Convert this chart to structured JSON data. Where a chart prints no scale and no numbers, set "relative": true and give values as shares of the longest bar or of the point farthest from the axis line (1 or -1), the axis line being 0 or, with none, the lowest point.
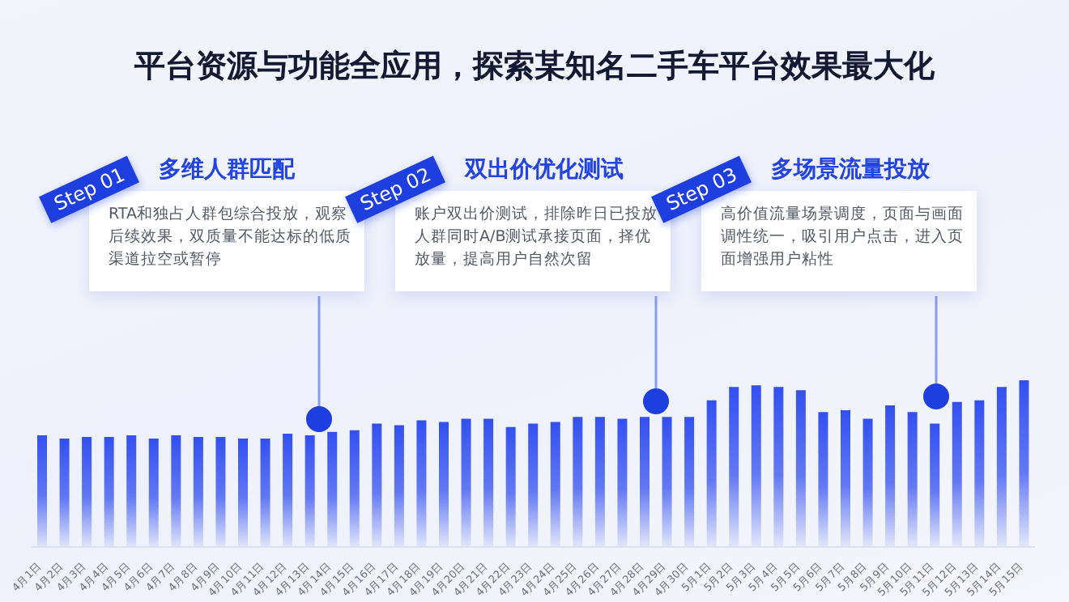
{
  "chart_data": {
    "type": "bar",
    "title": "平台资源与功能全应用，探索某知名二手车平台效果最大化",
    "relative": true,
    "color": "#3350f0",
    "categories": [
      "4月1日",
      "4月2日",
      "4月3日",
      "4月4日",
      "4月5日",
      "4月6日",
      "4月7日",
      "4月8日",
      "4月9日",
      "4月10日",
      "4月11日",
      "4月12日",
      "4月13日",
      "4月14日",
      "4月15日",
      "4月16日",
      "4月17日",
      "4月18日",
      "4月19日",
      "4月20日",
      "4月21日",
      "4月22日",
      "4月23日",
      "4月24日",
      "4月25日",
      "4月26日",
      "4月27日",
      "4月28日",
      "4月29日",
      "4月30日",
      "5月1日",
      "5月2日",
      "5月3日",
      "5月4日",
      "5月5日",
      "5月6日",
      "5月7日",
      "5月8日",
      "5月9日",
      "5月10日",
      "5月11日",
      "5月12日",
      "5月13日",
      "5月14日",
      "5月15日"
    ],
    "values": [
      0.67,
      0.65,
      0.66,
      0.66,
      0.67,
      0.65,
      0.67,
      0.66,
      0.66,
      0.65,
      0.65,
      0.68,
      0.67,
      0.69,
      0.7,
      0.74,
      0.73,
      0.76,
      0.75,
      0.77,
      0.77,
      0.72,
      0.74,
      0.75,
      0.78,
      0.78,
      0.77,
      0.78,
      0.78,
      0.78,
      0.88,
      0.96,
      0.97,
      0.96,
      0.94,
      0.81,
      0.82,
      0.77,
      0.85,
      0.81,
      0.74,
      0.87,
      0.88,
      0.96,
      1
    ],
    "annotations": [
      "Step 01",
      "多维人群匹配",
      "RTA和独占人群包综合投放，观察后续效果，双质量不能达标的低质渠道拉空或暂停",
      "Step 02",
      "双出价优化测试",
      "账户双出价测试，排除昨日已投放人群同时A/B测试承接页面，择优放量，提高用户自然次留",
      "Step 03",
      "多场景流量投放",
      "高价值流量场景调度，页面与画面调性统一，吸引用户点击，进入页面增强用户粘性"
    ]
  }
}
